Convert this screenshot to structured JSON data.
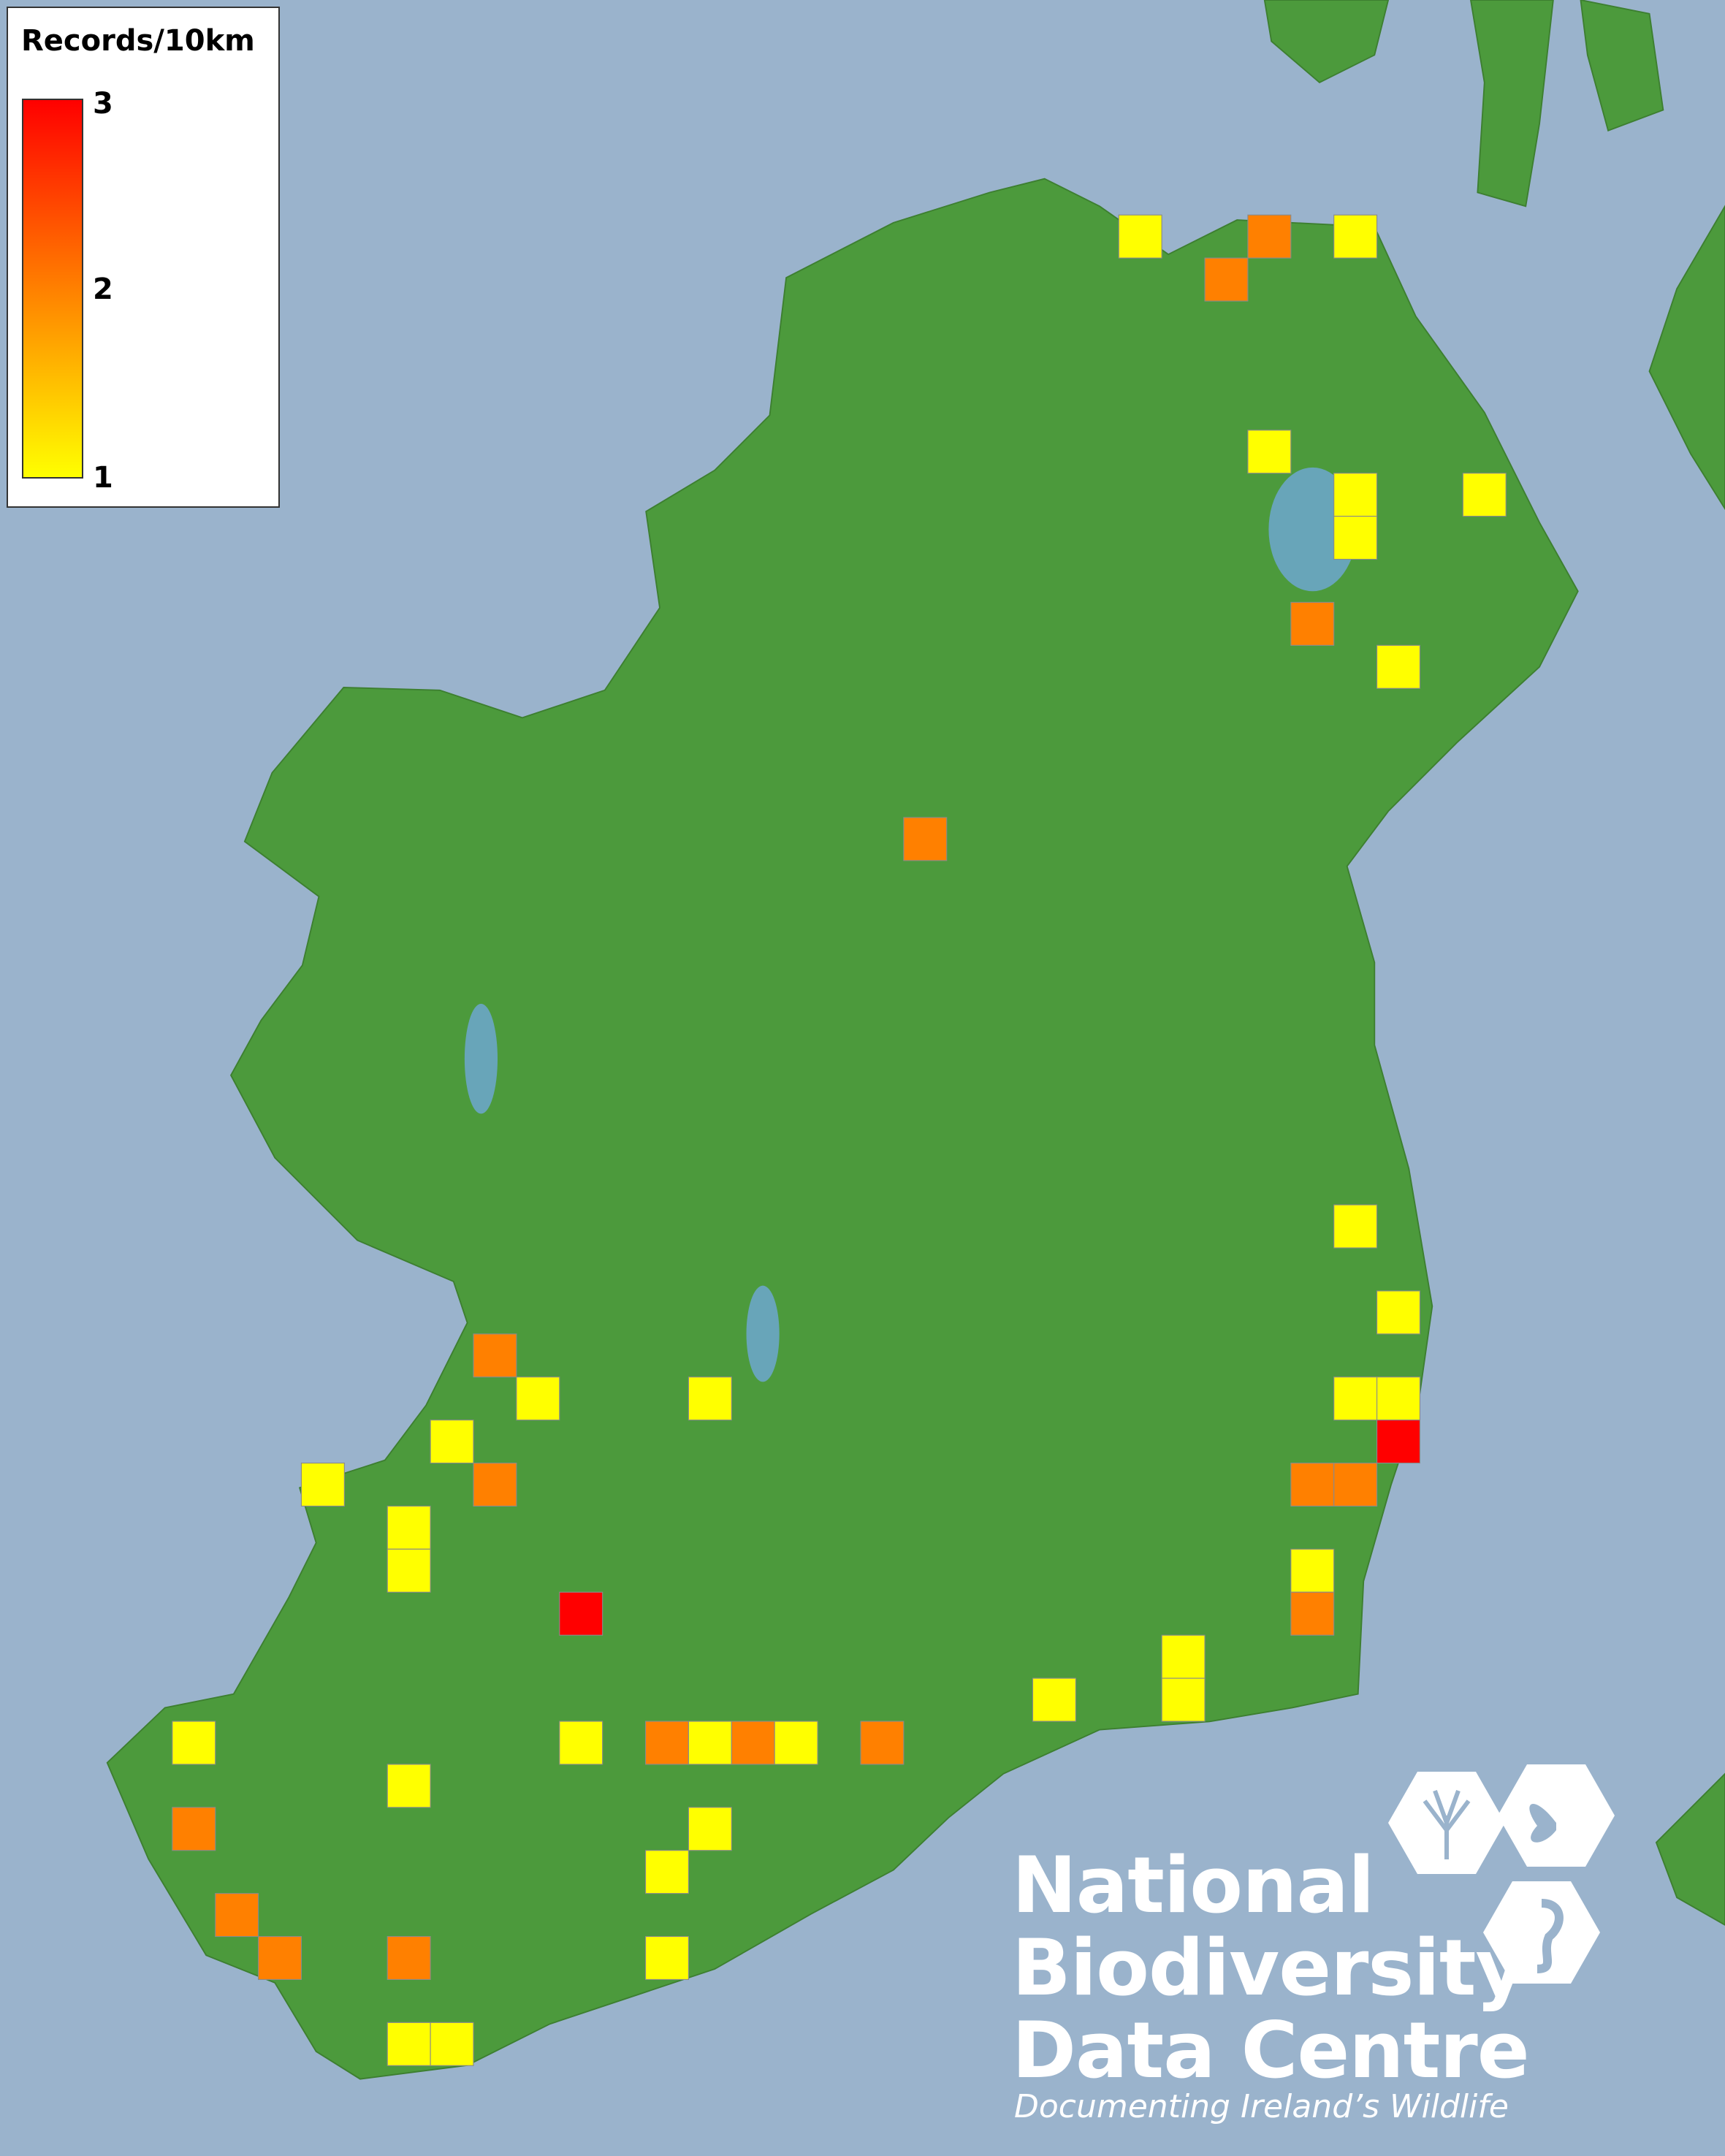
{
  "legend": {
    "title": "Records/10km",
    "max_label": "3",
    "mid_label": "2",
    "min_label": "1",
    "range": [
      1,
      3
    ],
    "gradient": [
      "#ffff00",
      "#ff8000",
      "#ff0000"
    ]
  },
  "colors": {
    "sea": "#9ab3cc",
    "land": "#4c9a3c",
    "value_1": "#ffff00",
    "value_2": "#ff8000",
    "value_3": "#ff0000"
  },
  "grid_unit": "10km square (Irish Grid, SW corner easting/northing in km)",
  "records": [
    {
      "e": 250,
      "n": 450,
      "v": 1
    },
    {
      "e": 280,
      "n": 450,
      "v": 2
    },
    {
      "e": 300,
      "n": 450,
      "v": 1
    },
    {
      "e": 270,
      "n": 440,
      "v": 2
    },
    {
      "e": 280,
      "n": 400,
      "v": 1
    },
    {
      "e": 300,
      "n": 390,
      "v": 1
    },
    {
      "e": 330,
      "n": 390,
      "v": 1
    },
    {
      "e": 300,
      "n": 380,
      "v": 1
    },
    {
      "e": 290,
      "n": 360,
      "v": 2
    },
    {
      "e": 310,
      "n": 350,
      "v": 1
    },
    {
      "e": 200,
      "n": 310,
      "v": 2
    },
    {
      "e": 300,
      "n": 220,
      "v": 1
    },
    {
      "e": 310,
      "n": 200,
      "v": 1
    },
    {
      "e": 100,
      "n": 190,
      "v": 2
    },
    {
      "e": 110,
      "n": 180,
      "v": 1
    },
    {
      "e": 150,
      "n": 180,
      "v": 1
    },
    {
      "e": 300,
      "n": 180,
      "v": 1
    },
    {
      "e": 310,
      "n": 180,
      "v": 1
    },
    {
      "e": 90,
      "n": 170,
      "v": 1
    },
    {
      "e": 310,
      "n": 170,
      "v": 3
    },
    {
      "e": 60,
      "n": 160,
      "v": 1
    },
    {
      "e": 100,
      "n": 160,
      "v": 2
    },
    {
      "e": 290,
      "n": 160,
      "v": 2
    },
    {
      "e": 300,
      "n": 160,
      "v": 2
    },
    {
      "e": 80,
      "n": 150,
      "v": 1
    },
    {
      "e": 80,
      "n": 140,
      "v": 1
    },
    {
      "e": 290,
      "n": 140,
      "v": 1
    },
    {
      "e": 120,
      "n": 130,
      "v": 3
    },
    {
      "e": 290,
      "n": 130,
      "v": 2
    },
    {
      "e": 260,
      "n": 120,
      "v": 1
    },
    {
      "e": 230,
      "n": 110,
      "v": 1
    },
    {
      "e": 260,
      "n": 110,
      "v": 1
    },
    {
      "e": 30,
      "n": 100,
      "v": 1
    },
    {
      "e": 120,
      "n": 100,
      "v": 1
    },
    {
      "e": 140,
      "n": 100,
      "v": 2
    },
    {
      "e": 150,
      "n": 100,
      "v": 1
    },
    {
      "e": 160,
      "n": 100,
      "v": 2
    },
    {
      "e": 170,
      "n": 100,
      "v": 1
    },
    {
      "e": 190,
      "n": 100,
      "v": 2
    },
    {
      "e": 80,
      "n": 90,
      "v": 1
    },
    {
      "e": 30,
      "n": 80,
      "v": 2
    },
    {
      "e": 150,
      "n": 80,
      "v": 1
    },
    {
      "e": 140,
      "n": 70,
      "v": 1
    },
    {
      "e": 40,
      "n": 60,
      "v": 2
    },
    {
      "e": 50,
      "n": 50,
      "v": 2
    },
    {
      "e": 80,
      "n": 50,
      "v": 2
    },
    {
      "e": 140,
      "n": 50,
      "v": 1
    },
    {
      "e": 80,
      "n": 30,
      "v": 1
    },
    {
      "e": 90,
      "n": 30,
      "v": 1
    }
  ],
  "logo": {
    "line1": "National",
    "line2": "Biodiversity",
    "line3": "Data Centre",
    "tagline": "Documenting Ireland’s Wildlife"
  }
}
